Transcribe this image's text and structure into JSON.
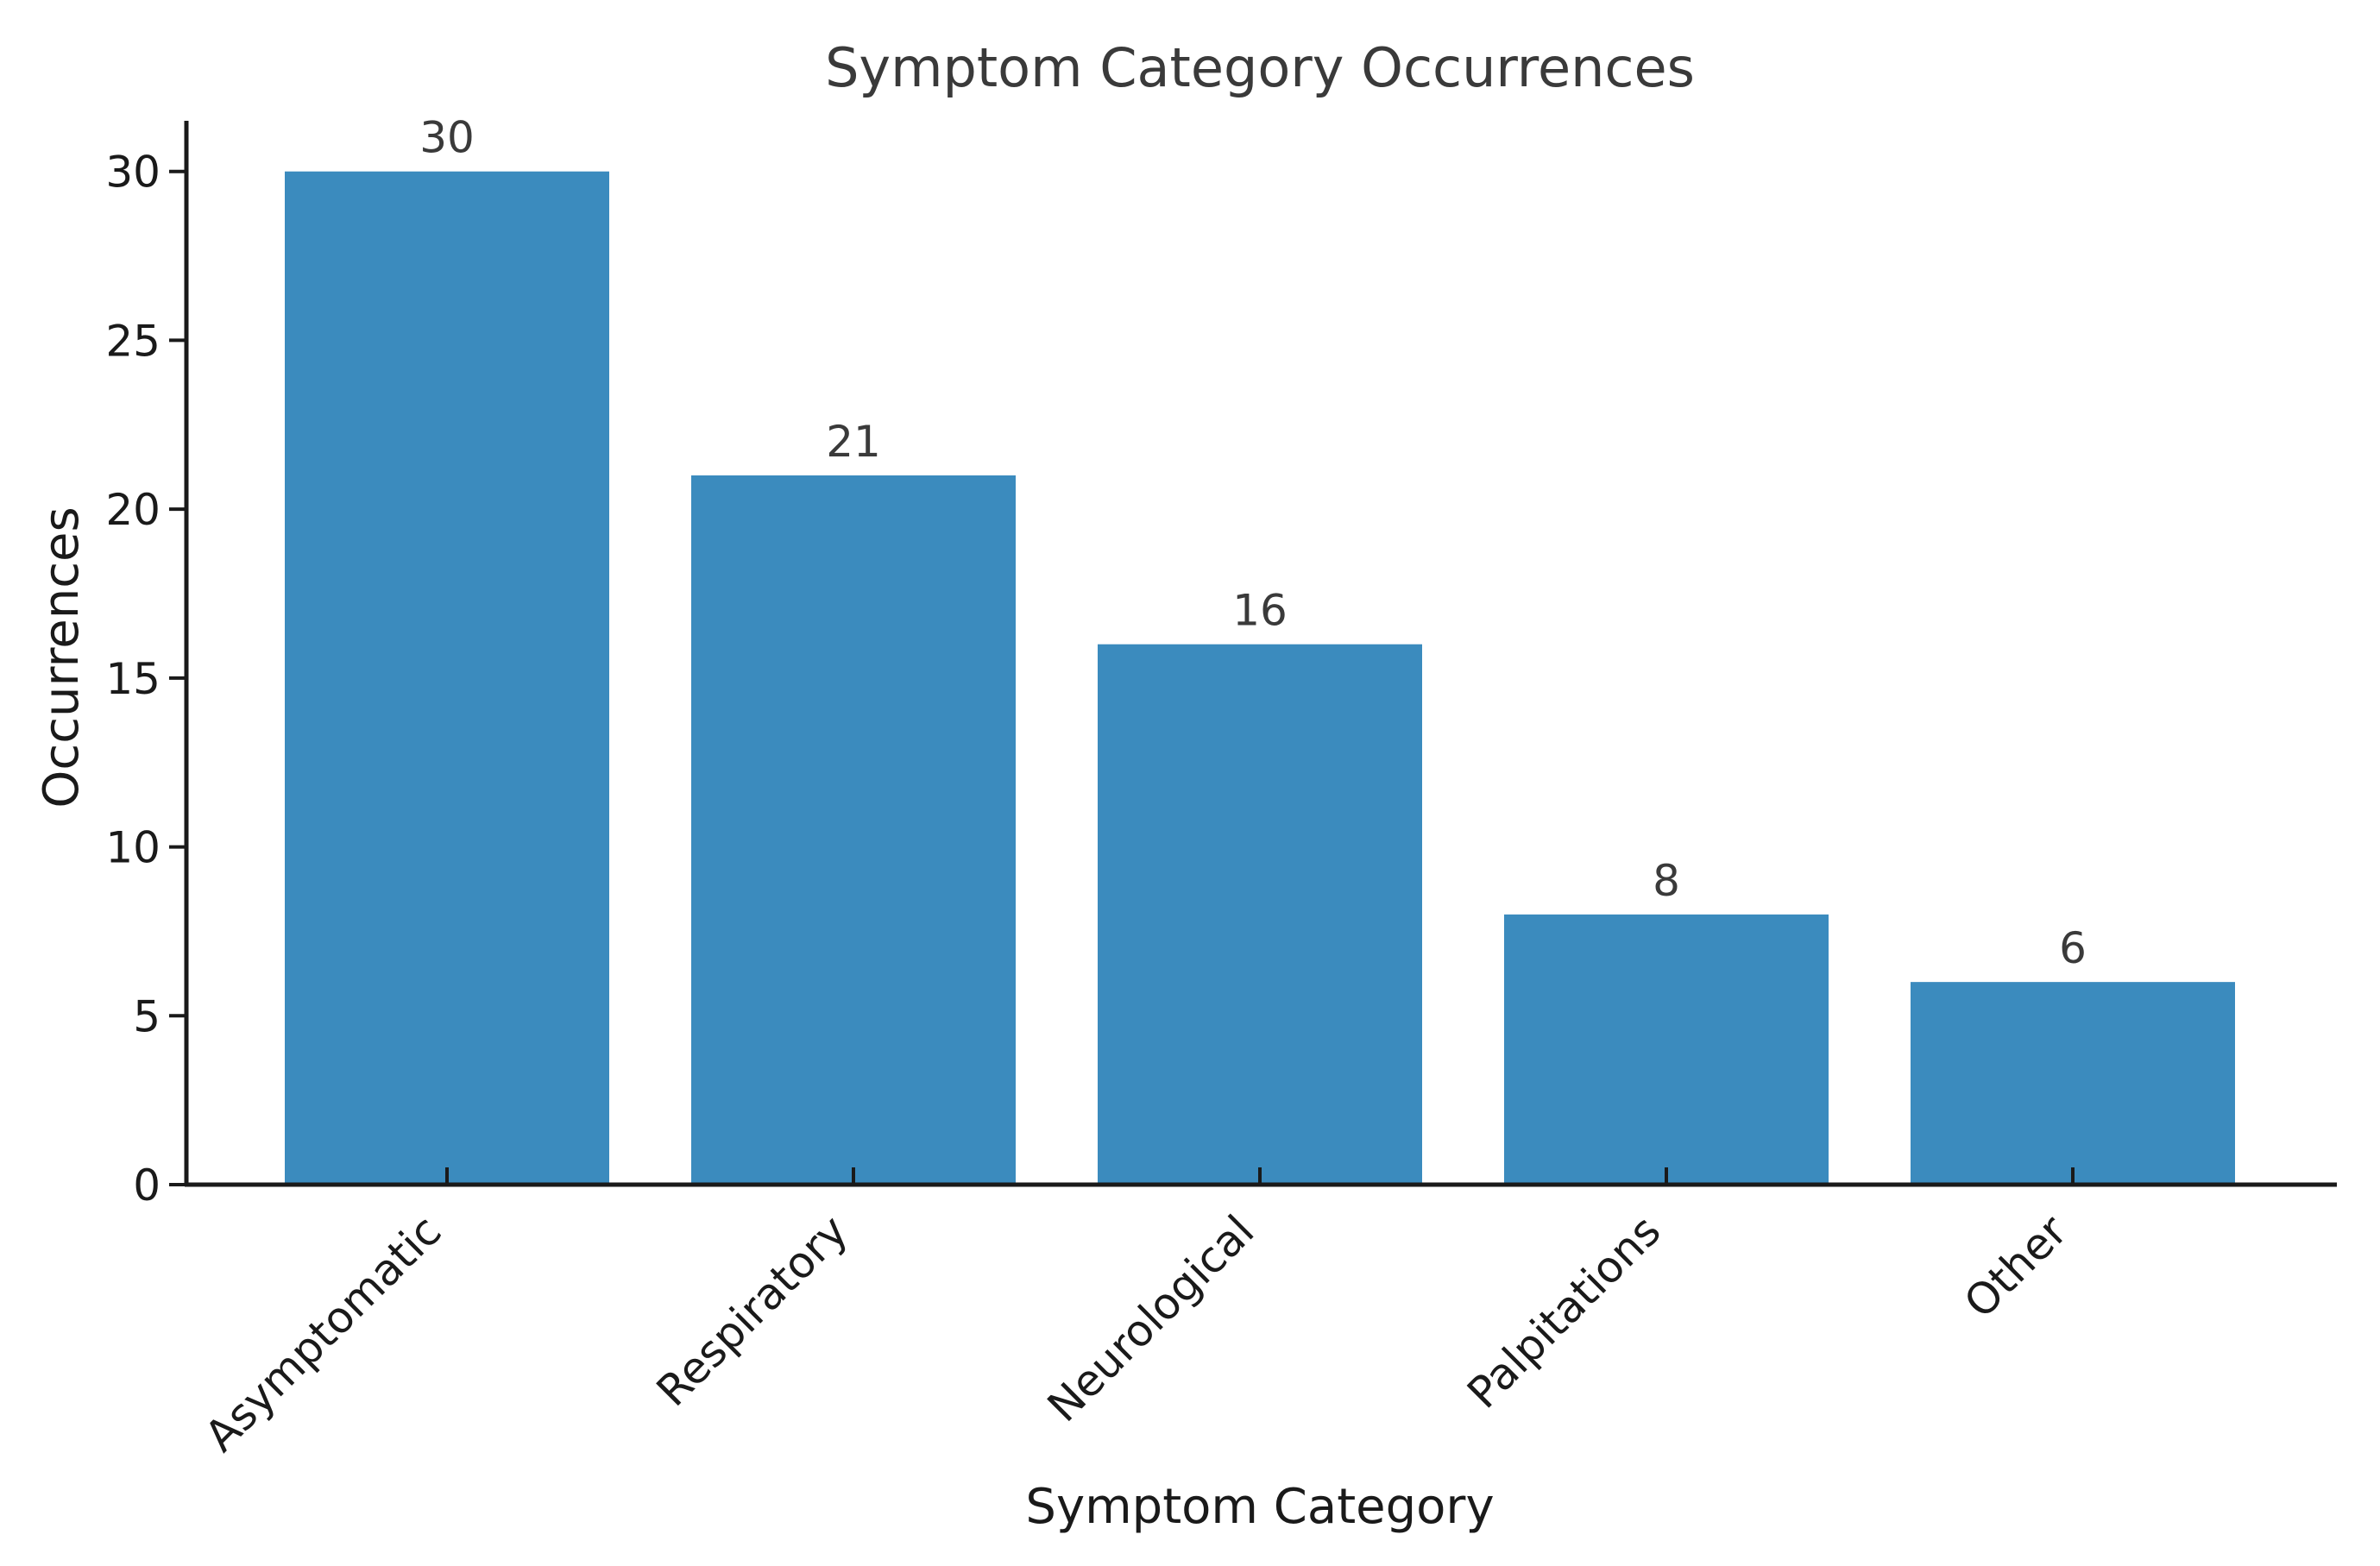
{
  "chart_data": {
    "type": "bar",
    "title": "Symptom Category Occurrences",
    "xlabel": "Symptom Category",
    "ylabel": "Occurrences",
    "categories": [
      "Asymptomatic",
      "Respiratory",
      "Neurological",
      "Palpitations",
      "Other"
    ],
    "values": [
      30,
      21,
      16,
      8,
      6
    ],
    "data_labels": [
      "30",
      "21",
      "16",
      "8",
      "6"
    ],
    "ylim": [
      0,
      31.5
    ],
    "yticks": [
      0,
      5,
      10,
      15,
      20,
      25,
      30
    ],
    "ytick_labels": [
      "0",
      "5",
      "10",
      "15",
      "20",
      "25",
      "30"
    ],
    "grid": false,
    "legend": "none",
    "bar_color": "#3b8bbe",
    "axis_color": "#1a1a1a"
  }
}
